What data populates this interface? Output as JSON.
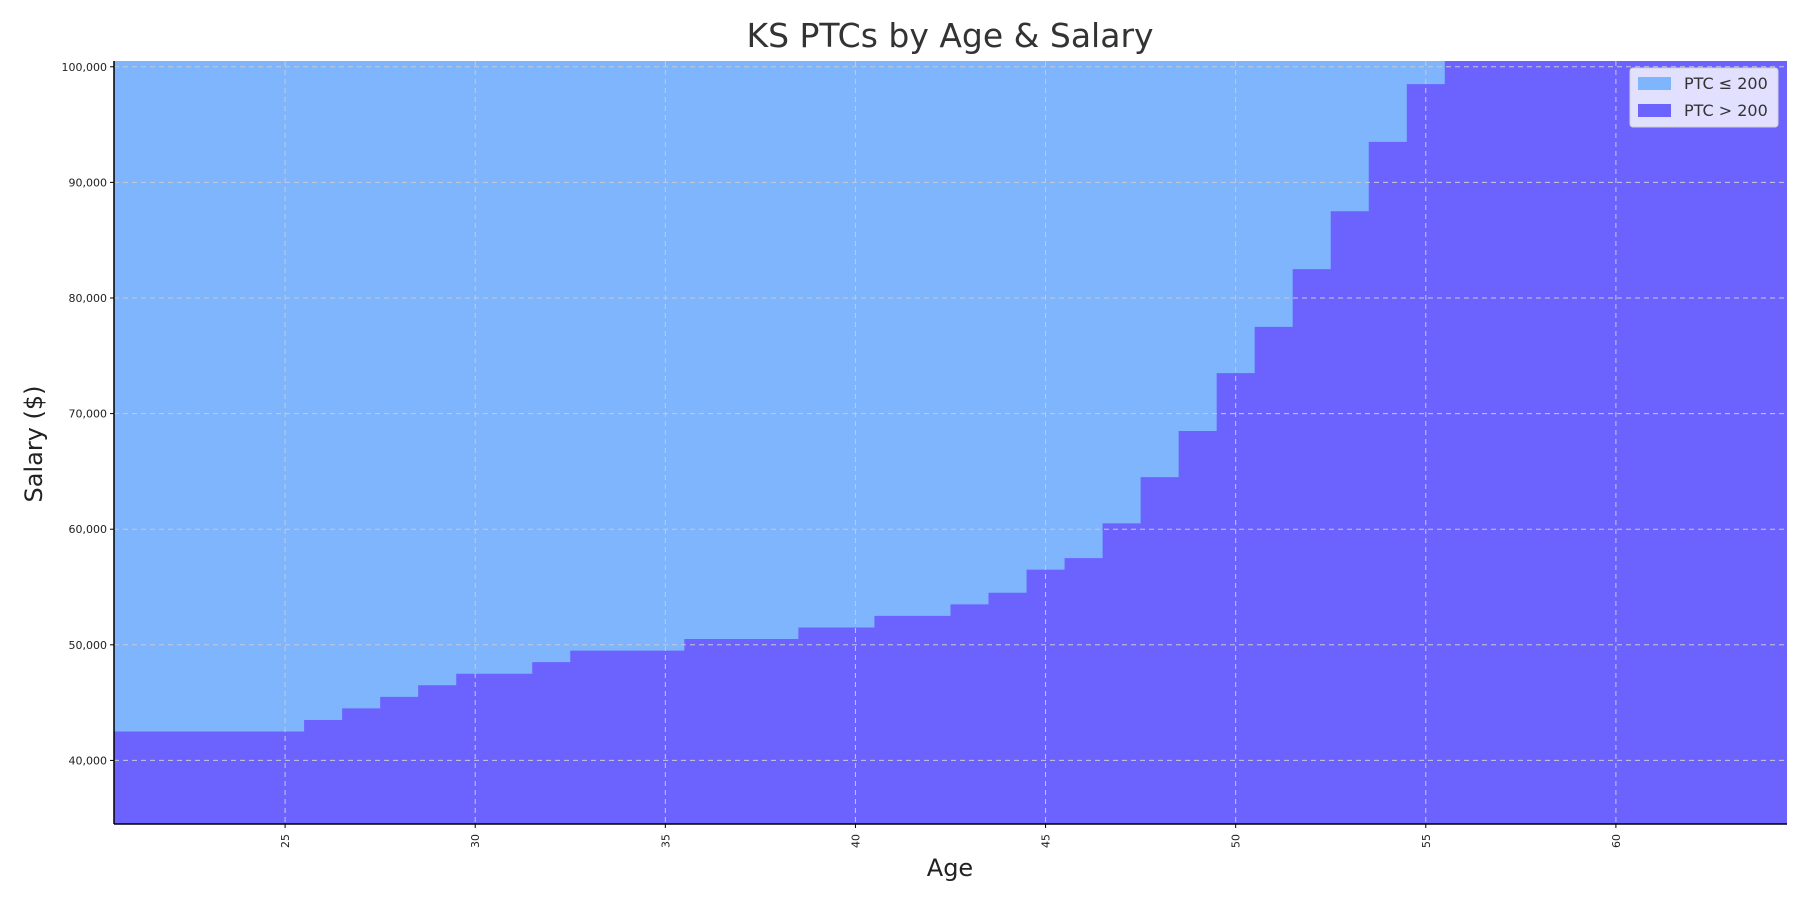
{
  "chart_data": {
    "type": "area",
    "title": "KS PTCs by Age & Salary",
    "xlabel": "Age",
    "ylabel": "Salary ($)",
    "xlim": [
      20.5,
      64.5
    ],
    "ylim": [
      34500,
      100500
    ],
    "x_ticks": [
      25,
      30,
      35,
      40,
      45,
      50,
      55,
      60
    ],
    "y_ticks": [
      40000,
      50000,
      60000,
      70000,
      80000,
      90000,
      100000
    ],
    "y_tick_labels": [
      "40,000",
      "50,000",
      "60,000",
      "70,000",
      "80,000",
      "90,000",
      "100,000"
    ],
    "grid": true,
    "legend_position": "top-right",
    "series": [
      {
        "name": "PTC ≤ 200",
        "color": "#7eb5fd"
      },
      {
        "name": "PTC > 200",
        "color": "#6c63ff"
      }
    ],
    "threshold": {
      "description_key": "boundary",
      "ages": [
        21,
        22,
        23,
        24,
        25,
        26,
        27,
        28,
        29,
        30,
        31,
        32,
        33,
        34,
        35,
        36,
        37,
        38,
        39,
        40,
        41,
        42,
        43,
        44,
        45,
        46,
        47,
        48,
        49,
        50,
        51,
        52,
        53,
        54,
        55,
        56,
        57,
        58,
        59,
        60,
        61,
        62,
        63,
        64
      ],
      "salary": [
        42500,
        42500,
        42500,
        42500,
        42500,
        43500,
        44500,
        45500,
        46500,
        47500,
        47500,
        48500,
        49500,
        49500,
        49500,
        50500,
        50500,
        50500,
        51500,
        51500,
        52500,
        52500,
        53500,
        54500,
        56500,
        57500,
        60500,
        64500,
        68500,
        73500,
        77500,
        82500,
        87500,
        93500,
        98500,
        100500,
        100500,
        100500,
        100500,
        100500,
        100500,
        100500,
        100500,
        100500
      ]
    }
  }
}
